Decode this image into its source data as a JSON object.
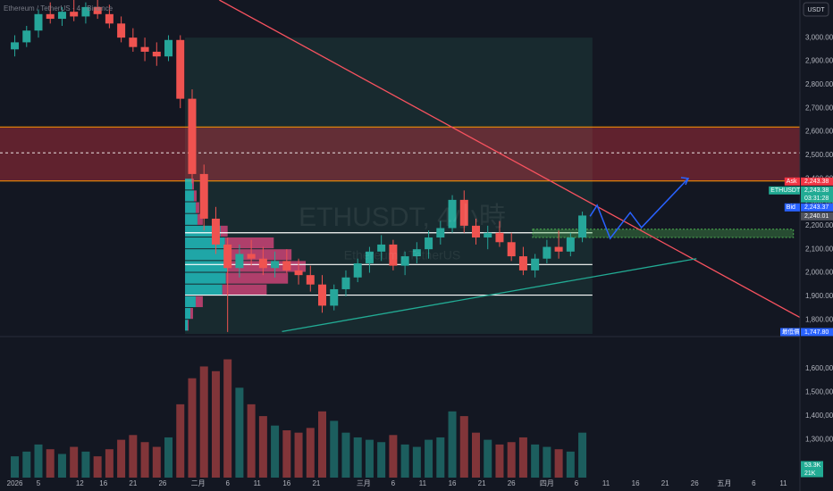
{
  "header": {
    "legend": "Ethereum / TetherUS · 4 · Binance",
    "currency": "USDT",
    "watermark": "ETHUSDT, 4小時",
    "watermark_sub": "Ethereum / TetherUS"
  },
  "chart_data": {
    "type": "candlestick",
    "x": [
      1,
      3,
      5,
      7,
      9,
      11,
      13,
      15,
      17,
      19,
      21,
      23,
      25,
      27,
      29,
      31,
      33,
      35,
      37,
      39,
      41,
      43,
      45,
      47,
      49,
      51,
      53,
      55,
      57,
      59,
      61,
      63,
      65,
      67,
      69,
      71,
      73,
      75,
      77,
      79,
      81,
      83,
      85,
      87,
      89,
      91,
      93,
      95,
      97
    ],
    "open": [
      2950,
      2980,
      3030,
      3100,
      3080,
      3110,
      3090,
      3130,
      3100,
      3060,
      3000,
      2960,
      2940,
      2920,
      2990,
      2740,
      2420,
      2230,
      2120,
      2020,
      2080,
      2060,
      2020,
      2050,
      2010,
      1990,
      1950,
      1860,
      1930,
      1980,
      2040,
      2090,
      2120,
      2030,
      2070,
      2100,
      2150,
      2190,
      2310,
      2200,
      2150,
      2170,
      2130,
      2070,
      2010,
      2060,
      2110,
      2090,
      2150
    ],
    "high": [
      3010,
      3050,
      3120,
      3150,
      3130,
      3160,
      3150,
      3160,
      3140,
      3090,
      3040,
      3000,
      2980,
      3010,
      3010,
      2780,
      2460,
      2280,
      2150,
      2120,
      2140,
      2110,
      2090,
      2100,
      2060,
      2030,
      1990,
      1950,
      2010,
      2060,
      2110,
      2160,
      2140,
      2090,
      2130,
      2180,
      2220,
      2330,
      2350,
      2230,
      2200,
      2220,
      2170,
      2110,
      2080,
      2140,
      2180,
      2170,
      2260
    ],
    "low": [
      2920,
      2960,
      3000,
      3060,
      3050,
      3070,
      3060,
      3080,
      3040,
      2980,
      2940,
      2900,
      2880,
      2900,
      2700,
      2380,
      2180,
      2080,
      1748,
      1980,
      2030,
      1990,
      1980,
      2000,
      1950,
      1920,
      1830,
      1840,
      1900,
      1960,
      2000,
      2050,
      2010,
      1990,
      2040,
      2060,
      2120,
      2170,
      2170,
      2120,
      2100,
      2110,
      2050,
      1990,
      1980,
      2040,
      2060,
      2070,
      2130
    ],
    "close": [
      2980,
      3030,
      3100,
      3080,
      3110,
      3090,
      3130,
      3100,
      3060,
      3000,
      2960,
      2940,
      2920,
      2990,
      2740,
      2420,
      2230,
      2120,
      2020,
      2080,
      2060,
      2020,
      2050,
      2010,
      1990,
      1950,
      1860,
      1930,
      1980,
      2040,
      2090,
      2120,
      2030,
      2070,
      2100,
      2150,
      2190,
      2310,
      2200,
      2150,
      2170,
      2130,
      2070,
      2010,
      2060,
      2110,
      2090,
      2150,
      2243.38
    ],
    "volume": [
      1230000,
      1250000,
      1280000,
      1260000,
      1240000,
      1270000,
      1250000,
      1230000,
      1260000,
      1300000,
      1320000,
      1290000,
      1270000,
      1310000,
      1450000,
      1560000,
      1610000,
      1590000,
      1640000,
      1520000,
      1450000,
      1400000,
      1360000,
      1340000,
      1330000,
      1350000,
      1420000,
      1380000,
      1330000,
      1310000,
      1300000,
      1290000,
      1320000,
      1280000,
      1270000,
      1300000,
      1310000,
      1420000,
      1400000,
      1330000,
      1300000,
      1280000,
      1290000,
      1310000,
      1280000,
      1270000,
      1260000,
      1250000,
      1330000
    ],
    "up_color": "#26a69a",
    "down_color": "#ef5350",
    "xlim": [
      -1.5,
      133.8
    ],
    "xticks": [
      {
        "value": 1,
        "label": "2026"
      },
      {
        "value": 5,
        "label": "5"
      },
      {
        "value": 12,
        "label": "12"
      },
      {
        "value": 16,
        "label": "16"
      },
      {
        "value": 21,
        "label": "21"
      },
      {
        "value": 26,
        "label": "26"
      },
      {
        "value": 32,
        "label": "二月"
      },
      {
        "value": 37,
        "label": "6"
      },
      {
        "value": 42,
        "label": "11"
      },
      {
        "value": 47,
        "label": "16"
      },
      {
        "value": 52,
        "label": "21"
      },
      {
        "value": 60,
        "label": "三月"
      },
      {
        "value": 65,
        "label": "6"
      },
      {
        "value": 70,
        "label": "11"
      },
      {
        "value": 75,
        "label": "16"
      },
      {
        "value": 80,
        "label": "21"
      },
      {
        "value": 85,
        "label": "26"
      },
      {
        "value": 91,
        "label": "四月"
      },
      {
        "value": 96,
        "label": "6"
      },
      {
        "value": 101,
        "label": "11"
      },
      {
        "value": 106,
        "label": "16"
      },
      {
        "value": 111,
        "label": "21"
      },
      {
        "value": 116,
        "label": "26"
      },
      {
        "value": 121,
        "label": "五月"
      },
      {
        "value": 126,
        "label": "6"
      },
      {
        "value": 131,
        "label": "11"
      }
    ],
    "ylim": [
      1740,
      3160
    ],
    "yticks": [
      {
        "value": 1800,
        "label": "1,800.00"
      },
      {
        "value": 1900,
        "label": "1,900.00"
      },
      {
        "value": 2000,
        "label": "2,000.00"
      },
      {
        "value": 2100,
        "label": "2,100.00"
      },
      {
        "value": 2200,
        "label": "2,200.00"
      },
      {
        "value": 2300,
        "label": "2,300.00"
      },
      {
        "value": 2400,
        "label": "2,400.00"
      },
      {
        "value": 2500,
        "label": "2,500.00"
      },
      {
        "value": 2600,
        "label": "2,600.00"
      },
      {
        "value": 2700,
        "label": "2,700.00"
      },
      {
        "value": 2800,
        "label": "2,800.00"
      },
      {
        "value": 2900,
        "label": "2,900.00"
      },
      {
        "value": 3000,
        "label": "3,000.00"
      }
    ],
    "volume_ylim": [
      1140000,
      1725000
    ],
    "volume_yticks": [
      {
        "value": 1300000,
        "label": "1,300,000"
      },
      {
        "value": 1400000,
        "label": "1,400,000"
      },
      {
        "value": 1500000,
        "label": "1,500,000"
      },
      {
        "value": 1600000,
        "label": "1,600,000"
      }
    ],
    "volume_badges": [
      {
        "value": 53300,
        "label": "53.3K",
        "color": "#22ab94"
      },
      {
        "value": 21000,
        "label": "21K",
        "color": "#22ab94"
      }
    ],
    "markers": [
      {
        "name": "Ask",
        "value": 2243.38,
        "label": "2,243.38",
        "color": "#f23645"
      },
      {
        "name": "ETHUSDT",
        "value": 2243.38,
        "label": "2,243.38",
        "sub": "03:31:28",
        "color": "#22ab94"
      },
      {
        "name": "Bid",
        "value": 2243.37,
        "label": "2,243.37",
        "color": "#2962ff"
      },
      {
        "value": 2240.01,
        "label": "2,240.01",
        "color": "#50535e"
      }
    ],
    "low_marker": {
      "name": "最低價",
      "value": 1747.8,
      "label": "1,747.80",
      "color": "#2962ff"
    },
    "zone": {
      "from": 2390,
      "to": 2620,
      "mid": 2510,
      "color": "#f23645",
      "border": "#ff9800"
    },
    "range_box": {
      "x": [
        29.8,
        98.7
      ],
      "y": [
        1740,
        3000
      ],
      "color": "#1d3a3a"
    },
    "volume_profile": {
      "anchor_x": 29.8,
      "bins": [
        2400,
        2350,
        2300,
        2250,
        2200,
        2150,
        2100,
        2050,
        2000,
        1950,
        1900,
        1850,
        1800,
        1750
      ],
      "buy": [
        8,
        10,
        12,
        14,
        40,
        45,
        50,
        48,
        46,
        42,
        12,
        6,
        3
      ],
      "sell": [
        2,
        3,
        4,
        6,
        8,
        55,
        70,
        88,
        70,
        50,
        8,
        3,
        1
      ],
      "buy_color": "#22c5c5",
      "sell_color": "#d6457a"
    },
    "levels": [
      {
        "x": [
          29.8,
          98.7
        ],
        "value": 2170
      },
      {
        "x": [
          29.8,
          98.7
        ],
        "value": 2035
      },
      {
        "x": [
          29.8,
          98.7
        ],
        "value": 1905
      }
    ],
    "green_box": {
      "x": [
        88.6,
        132.7
      ],
      "y": [
        2150,
        2185
      ],
      "color": "#4caf50"
    },
    "trendlines": [
      {
        "x": [
          35.6,
          133.8
        ],
        "y": [
          3160,
          1810
        ],
        "color": "#f7525f"
      },
      {
        "x": [
          46.2,
          116.3
        ],
        "y": [
          1750,
          2060
        ],
        "color": "#22ab94"
      }
    ],
    "projection": {
      "x": [
        98.3,
        99.5,
        101.7,
        105.1,
        107.0,
        114.9
      ],
      "y": [
        2240,
        2287,
        2146,
        2256,
        2192,
        2401
      ],
      "color": "#2962ff"
    }
  }
}
